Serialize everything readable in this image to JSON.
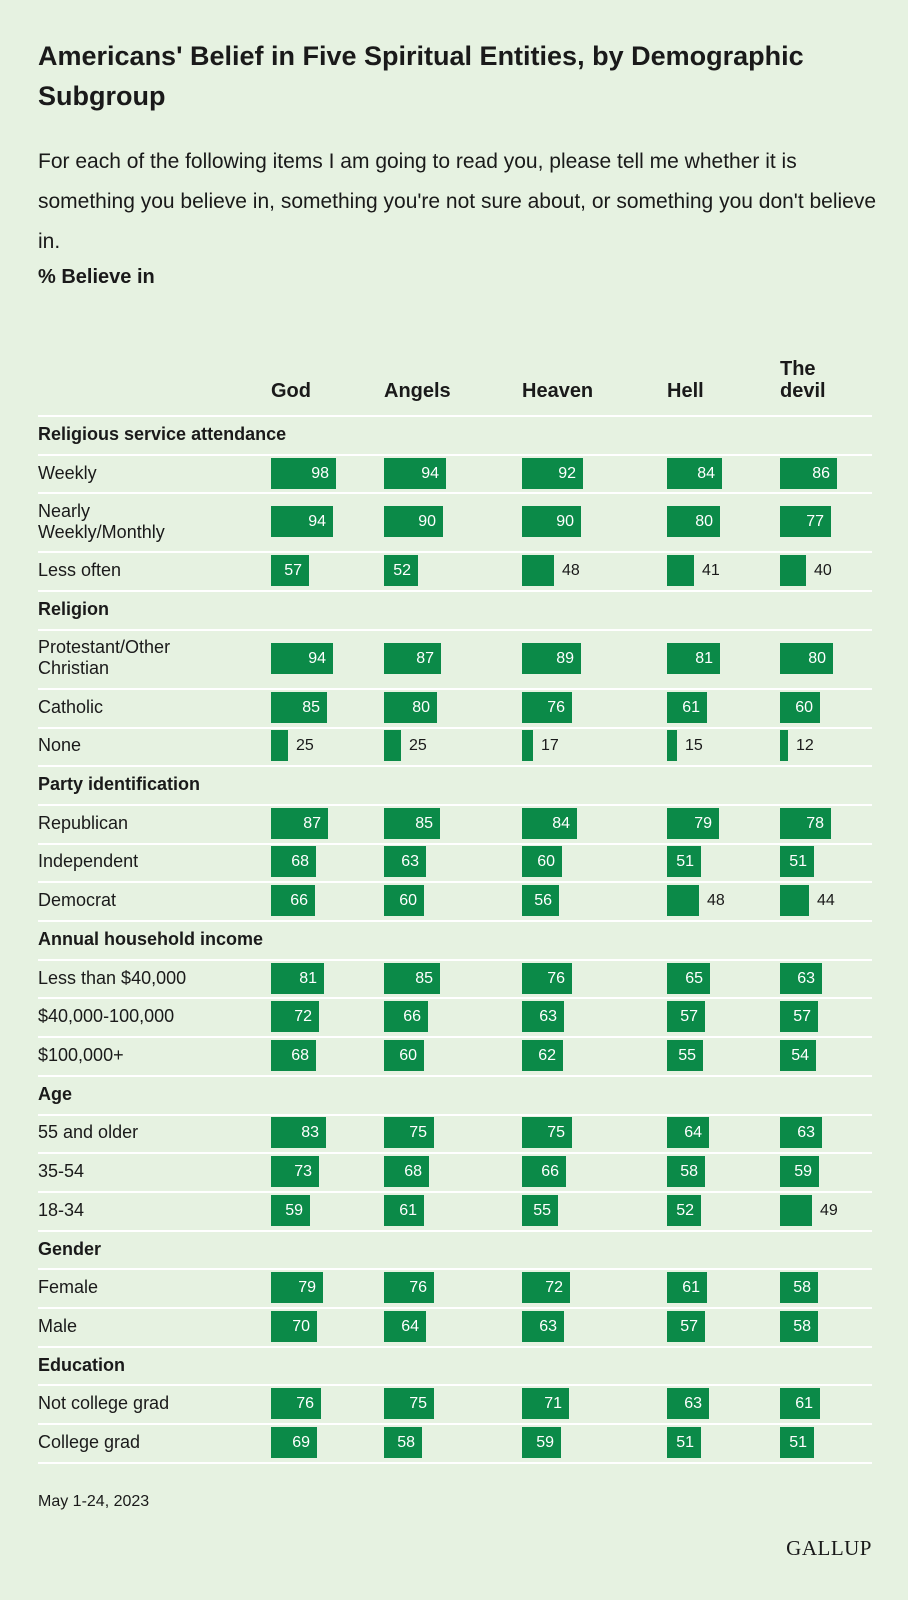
{
  "title": "Americans' Belief in Five Spiritual Entities, by Demographic Subgroup",
  "subtitle": "For each of the following items I am going to read you, please tell me whether it is something you believe in, something you're not sure about, or something you don't believe in.",
  "measure_label": "% Believe in",
  "footnote": "May 1-24, 2023",
  "brand": "GALLUP",
  "colors": {
    "background": "#e6f2e1",
    "bar": "#0b8a48",
    "divider": "#ffffff"
  },
  "chart_data": {
    "type": "bar",
    "orientation": "horizontal",
    "columns": [
      {
        "key": "god",
        "label": "God"
      },
      {
        "key": "angels",
        "label": "Angels"
      },
      {
        "key": "heaven",
        "label": "Heaven"
      },
      {
        "key": "hell",
        "label": "Hell"
      },
      {
        "key": "devil",
        "label": "The devil"
      }
    ],
    "value_range": [
      0,
      100
    ],
    "groups": [
      {
        "label": "Religious service attendance",
        "rows": [
          {
            "label": "Weekly",
            "values": [
              98,
              94,
              92,
              84,
              86
            ]
          },
          {
            "label": "Nearly Weekly/Monthly",
            "values": [
              94,
              90,
              90,
              80,
              77
            ]
          },
          {
            "label": "Less often",
            "values": [
              57,
              52,
              48,
              41,
              40
            ]
          }
        ]
      },
      {
        "label": "Religion",
        "rows": [
          {
            "label": "Protestant/Other Christian",
            "values": [
              94,
              87,
              89,
              81,
              80
            ]
          },
          {
            "label": "Catholic",
            "values": [
              85,
              80,
              76,
              61,
              60
            ]
          },
          {
            "label": "None",
            "values": [
              25,
              25,
              17,
              15,
              12
            ]
          }
        ]
      },
      {
        "label": "Party identification",
        "rows": [
          {
            "label": "Republican",
            "values": [
              87,
              85,
              84,
              79,
              78
            ]
          },
          {
            "label": "Independent",
            "values": [
              68,
              63,
              60,
              51,
              51
            ]
          },
          {
            "label": "Democrat",
            "values": [
              66,
              60,
              56,
              48,
              44
            ]
          }
        ]
      },
      {
        "label": "Annual household income",
        "rows": [
          {
            "label": "Less than $40,000",
            "values": [
              81,
              85,
              76,
              65,
              63
            ]
          },
          {
            "label": "$40,000-100,000",
            "values": [
              72,
              66,
              63,
              57,
              57
            ]
          },
          {
            "label": "$100,000+",
            "values": [
              68,
              60,
              62,
              55,
              54
            ]
          }
        ]
      },
      {
        "label": "Age",
        "rows": [
          {
            "label": "55 and older",
            "values": [
              83,
              75,
              75,
              64,
              63
            ]
          },
          {
            "label": "35-54",
            "values": [
              73,
              68,
              66,
              58,
              59
            ]
          },
          {
            "label": "18-34",
            "values": [
              59,
              61,
              55,
              52,
              49
            ]
          }
        ]
      },
      {
        "label": "Gender",
        "rows": [
          {
            "label": "Female",
            "values": [
              79,
              76,
              72,
              61,
              58
            ]
          },
          {
            "label": "Male",
            "values": [
              70,
              64,
              63,
              57,
              58
            ]
          }
        ]
      },
      {
        "label": "Education",
        "rows": [
          {
            "label": "Not college grad",
            "values": [
              76,
              75,
              71,
              63,
              61
            ]
          },
          {
            "label": "College grad",
            "values": [
              69,
              58,
              59,
              51,
              51
            ]
          }
        ]
      }
    ]
  }
}
